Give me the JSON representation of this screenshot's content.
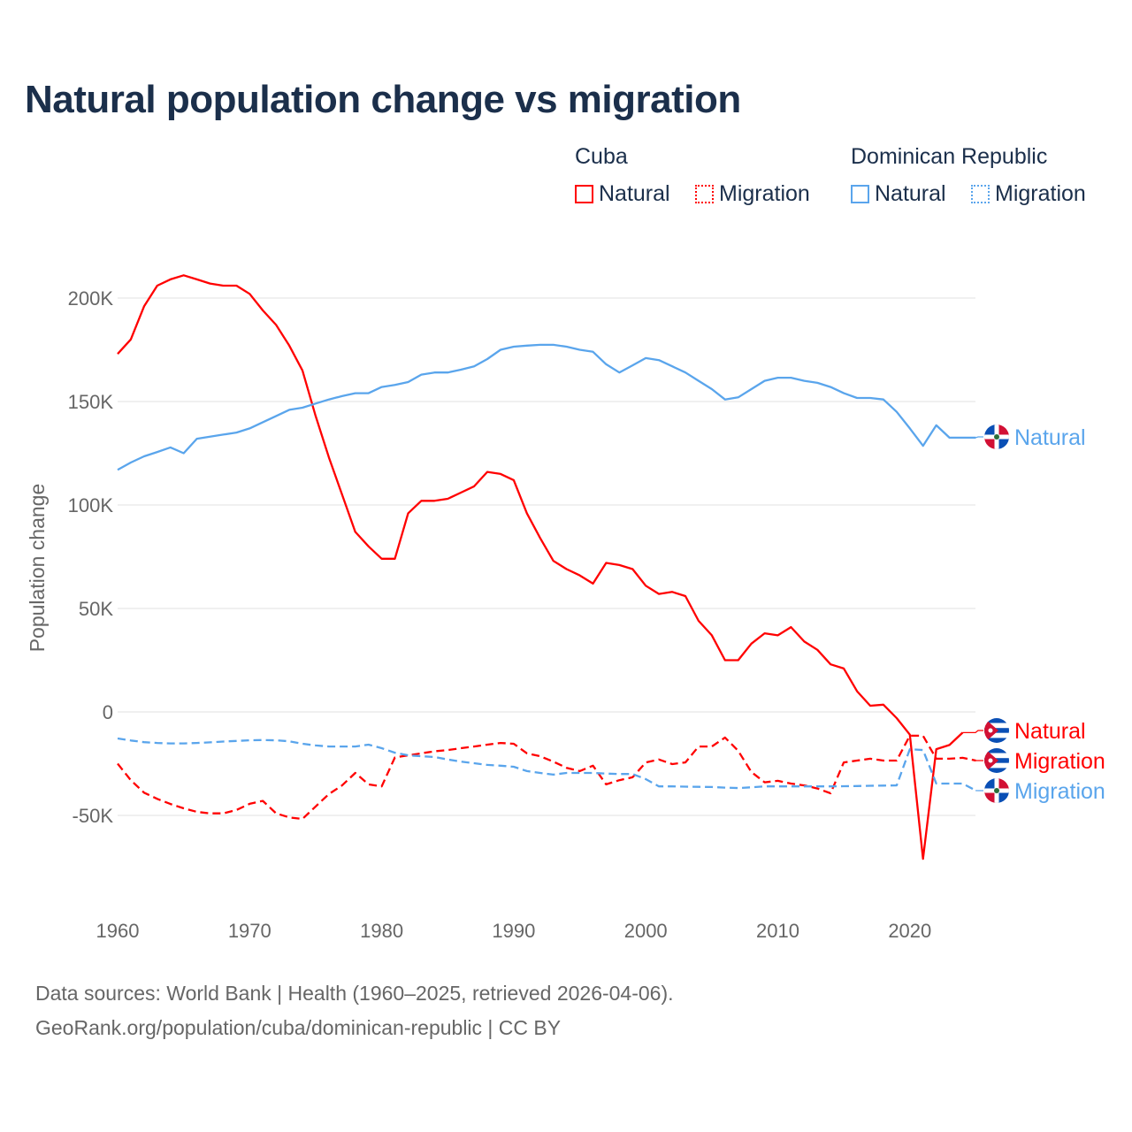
{
  "title": "Natural population change vs migration",
  "legend": {
    "groups": [
      {
        "name": "Cuba",
        "color": "#ff0000",
        "items": [
          "Natural",
          "Migration"
        ]
      },
      {
        "name": "Dominican Republic",
        "color": "#5aa5ec",
        "items": [
          "Natural",
          "Migration"
        ]
      }
    ]
  },
  "footer": {
    "line1": "Data sources: World Bank | Health (1960–2025, retrieved 2026-04-06).",
    "line2": "GeoRank.org/population/cuba/dominican-republic | CC BY"
  },
  "chart_data": {
    "type": "line",
    "title": "Natural population change vs migration",
    "xlabel": "",
    "ylabel": "Population change",
    "xlim": [
      1960,
      2025
    ],
    "ylim": [
      -85000,
      230000
    ],
    "x_ticks": [
      1960,
      1970,
      1980,
      1990,
      2000,
      2010,
      2020
    ],
    "y_ticks": [
      {
        "v": -50000,
        "label": "-50K"
      },
      {
        "v": 0,
        "label": "0"
      },
      {
        "v": 50000,
        "label": "50K"
      },
      {
        "v": 100000,
        "label": "100K"
      },
      {
        "v": 150000,
        "label": "150K"
      },
      {
        "v": 200000,
        "label": "200K"
      }
    ],
    "grid": true,
    "start_year": 1960,
    "series": [
      {
        "name": "Cuba Natural",
        "label": "Natural",
        "country": "Cuba",
        "color": "#ff0000",
        "dash": false,
        "values_k": [
          173,
          180,
          196,
          206,
          209,
          211,
          209,
          207,
          206,
          206,
          202,
          194,
          187,
          177,
          165,
          143,
          123,
          105,
          87,
          80,
          74,
          74,
          96,
          102,
          102,
          103,
          106,
          109,
          116,
          115,
          112,
          96,
          84,
          73,
          69,
          66,
          62,
          72,
          71,
          69,
          61,
          57,
          58,
          56,
          44,
          37,
          25,
          25,
          33,
          38,
          37,
          41,
          34,
          30,
          23,
          21,
          10,
          3,
          3.5,
          -3,
          -11,
          -71,
          -18,
          -16,
          -10
        ]
      },
      {
        "name": "Cuba Migration",
        "label": "Migration",
        "country": "Cuba",
        "color": "#ff0000",
        "dash": true,
        "values_k": [
          -25,
          -33,
          -39,
          -42,
          -44.5,
          -46.6,
          -48.3,
          -49,
          -49,
          -47.4,
          -44.4,
          -43,
          -49,
          -51,
          -51.7,
          -45.7,
          -39.7,
          -35.5,
          -29.5,
          -35,
          -36,
          -22,
          -21,
          -20,
          -19,
          -18.4,
          -17.5,
          -16.7,
          -15.8,
          -15,
          -15.4,
          -20,
          -21.4,
          -24,
          -27,
          -28.6,
          -26,
          -35,
          -33,
          -31.6,
          -24.4,
          -23,
          -25.2,
          -24.4,
          -16.7,
          -16.7,
          -12.4,
          -18.8,
          -29,
          -34,
          -33.3,
          -34.6,
          -35.5,
          -37,
          -39.3,
          -24.4,
          -23.5,
          -22.6,
          -23.5,
          -23.5,
          -11.5,
          -11.5,
          -22.6,
          -22.6,
          -22.2,
          -23.5
        ]
      },
      {
        "name": "Dominican Republic Natural",
        "label": "Natural",
        "country": "Dominican Republic",
        "color": "#5aa5ec",
        "dash": false,
        "values_k": [
          117,
          120.5,
          123.5,
          125.6,
          127.8,
          125,
          132,
          133,
          134,
          135,
          137,
          140,
          143,
          146,
          147,
          149,
          151,
          152.6,
          154,
          154,
          157,
          158,
          159.4,
          163,
          164,
          164,
          165.4,
          167,
          170.5,
          175,
          176.5,
          177,
          177.4,
          177.4,
          176.5,
          175,
          174,
          168,
          164,
          167.5,
          171,
          170,
          167,
          164,
          160,
          156,
          151,
          152,
          156,
          160,
          161.5,
          161.5,
          160,
          159,
          157,
          154,
          151.7,
          151.7,
          151,
          145,
          137,
          128.6,
          138.5,
          132.5,
          132.5,
          132.5
        ]
      },
      {
        "name": "Dominican Republic Migration",
        "label": "Migration",
        "country": "Dominican Republic",
        "color": "#5aa5ec",
        "dash": true,
        "values_k": [
          -12.8,
          -13.8,
          -14.6,
          -15,
          -15.2,
          -15.2,
          -15,
          -14.7,
          -14.3,
          -14,
          -13.7,
          -13.6,
          -13.7,
          -14.2,
          -15.4,
          -16.2,
          -16.7,
          -16.7,
          -16.7,
          -15.8,
          -17.5,
          -19.7,
          -21,
          -21.4,
          -21.8,
          -23,
          -24,
          -24.8,
          -25.6,
          -26,
          -26.5,
          -28.6,
          -29.5,
          -30.3,
          -29.5,
          -29.5,
          -29.5,
          -29.8,
          -30,
          -30,
          -32.5,
          -36,
          -36,
          -36.1,
          -36.2,
          -36.3,
          -36.6,
          -36.8,
          -36.4,
          -36,
          -36,
          -36,
          -36,
          -36,
          -36,
          -35.9,
          -35.8,
          -35.7,
          -35.6,
          -35.5,
          -18,
          -18.4,
          -34.6,
          -34.6,
          -34.6,
          -38
        ]
      }
    ]
  }
}
